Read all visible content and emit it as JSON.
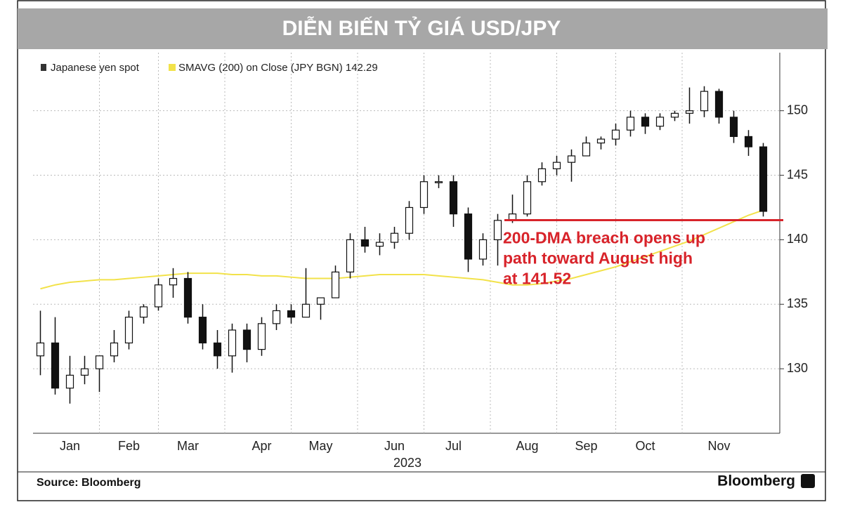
{
  "header": {
    "title": "DIỄN BIẾN TỶ GIÁ USD/JPY"
  },
  "chart_data": {
    "type": "candlestick",
    "legend": [
      "Japanese yen spot",
      "SMAVG (200)  on Close (JPY BGN) 142.29"
    ],
    "categories": [
      null,
      null,
      "Jan",
      null,
      null,
      null,
      "Feb",
      null,
      null,
      null,
      "Mar",
      null,
      null,
      null,
      null,
      "Apr",
      null,
      null,
      null,
      "May",
      null,
      null,
      null,
      null,
      "Jun",
      null,
      null,
      null,
      "Jul",
      null,
      null,
      null,
      null,
      "Aug",
      null,
      null,
      null,
      "Sep",
      null,
      null,
      null,
      "Oct",
      null,
      null,
      null,
      null,
      "Nov",
      null,
      null,
      null
    ],
    "year_label": "2023",
    "ohlc": [
      [
        131,
        134.5,
        129.5,
        132
      ],
      [
        132,
        134,
        128,
        128.5
      ],
      [
        128.5,
        131,
        127.3,
        129.5
      ],
      [
        129.5,
        131,
        128.8,
        130
      ],
      [
        130,
        131,
        128.2,
        131
      ],
      [
        131,
        133,
        130.5,
        132
      ],
      [
        132,
        134.5,
        131.5,
        134
      ],
      [
        134,
        135,
        133.5,
        134.8
      ],
      [
        134.8,
        137,
        134.5,
        136.5
      ],
      [
        136.5,
        137.8,
        135.5,
        137
      ],
      [
        137,
        137.5,
        133.5,
        134
      ],
      [
        134,
        135,
        131.5,
        132
      ],
      [
        132,
        133,
        130,
        131
      ],
      [
        131,
        133.5,
        129.7,
        133
      ],
      [
        133,
        133.5,
        130.5,
        131.5
      ],
      [
        131.5,
        134,
        131,
        133.5
      ],
      [
        133.5,
        135,
        133,
        134.5
      ],
      [
        134.5,
        135,
        133.5,
        134
      ],
      [
        134,
        137.8,
        134,
        135
      ],
      [
        135,
        135.5,
        133.8,
        135.5
      ],
      [
        135.5,
        138,
        135.5,
        137.5
      ],
      [
        137.5,
        140.5,
        137,
        140
      ],
      [
        140,
        141,
        139,
        139.5
      ],
      [
        139.5,
        140.5,
        138.8,
        139.8
      ],
      [
        139.8,
        141,
        139.3,
        140.5
      ],
      [
        140.5,
        143,
        140,
        142.5
      ],
      [
        142.5,
        145,
        142,
        144.5
      ],
      [
        144.5,
        145,
        144,
        144.5
      ],
      [
        144.5,
        145,
        141,
        142
      ],
      [
        142,
        142.5,
        137.5,
        138.5
      ],
      [
        138.5,
        140.5,
        138,
        140
      ],
      [
        140,
        142,
        138,
        141.5
      ],
      [
        141.5,
        143.5,
        141.3,
        142
      ],
      [
        142,
        145,
        141.8,
        144.5
      ],
      [
        144.5,
        146,
        144.2,
        145.5
      ],
      [
        145.5,
        146.5,
        145,
        146
      ],
      [
        146,
        147,
        144.5,
        146.5
      ],
      [
        146.5,
        148,
        146.5,
        147.5
      ],
      [
        147.5,
        148,
        147,
        147.8
      ],
      [
        147.8,
        149,
        147.3,
        148.5
      ],
      [
        148.5,
        150,
        148,
        149.5
      ],
      [
        149.5,
        149.8,
        148.2,
        148.8
      ],
      [
        148.8,
        149.8,
        148.5,
        149.5
      ],
      [
        149.5,
        150,
        149.2,
        149.8
      ],
      [
        149.8,
        151.8,
        149,
        150
      ],
      [
        150,
        151.9,
        149.5,
        151.5
      ],
      [
        151.5,
        151.7,
        149,
        149.5
      ],
      [
        149.5,
        150,
        147.5,
        148
      ],
      [
        148,
        148.5,
        146.5,
        147.2
      ],
      [
        147.2,
        147.5,
        141.8,
        142.2
      ]
    ],
    "sma": {
      "name": "SMAVG (200)",
      "color": "#f2e24a",
      "values": [
        136.2,
        136.5,
        136.7,
        136.8,
        136.9,
        136.9,
        137,
        137.1,
        137.2,
        137.3,
        137.4,
        137.4,
        137.4,
        137.3,
        137.3,
        137.2,
        137.2,
        137.1,
        137,
        137,
        137,
        137.1,
        137.2,
        137.3,
        137.3,
        137.3,
        137.3,
        137.2,
        137.1,
        137,
        136.9,
        136.7,
        136.5,
        136.5,
        136.6,
        136.8,
        137,
        137.3,
        137.6,
        137.9,
        138.3,
        138.7,
        139.1,
        139.5,
        139.9,
        140.4,
        140.9,
        141.4,
        141.9,
        142.29
      ]
    },
    "hline": 141.52,
    "annotation": [
      "200-DMA breach opens up",
      "path toward August high",
      "at 141.52"
    ],
    "ylim": [
      125,
      154.5
    ],
    "yticks": [
      130,
      135,
      140,
      145,
      150
    ],
    "grid": true
  },
  "footer": {
    "source": "Source: Bloomberg",
    "brand": "Bloomberg"
  }
}
